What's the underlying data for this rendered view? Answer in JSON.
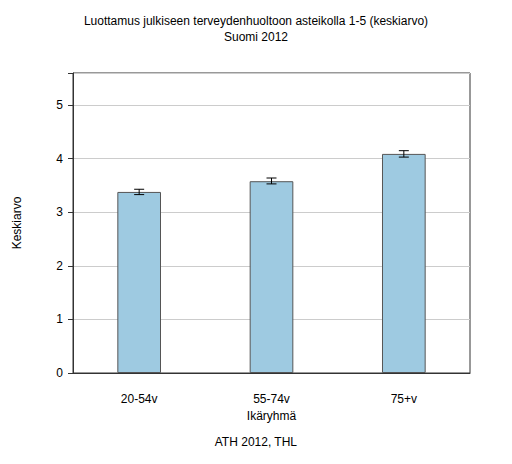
{
  "chart_data": {
    "type": "bar",
    "title": "Luottamus julkiseen terveydenhuoltoon asteikolla 1-5 (keskiarvo)",
    "subtitle": "Suomi 2012",
    "x_label": "Ikäryhmä",
    "y_label": "Keskiarvo",
    "caption": "ATH 2012, THL",
    "categories": [
      "20-54v",
      "55-74v",
      "75+v"
    ],
    "values": [
      3.38,
      3.58,
      4.09
    ],
    "error_bars": [
      [
        3.33,
        3.43
      ],
      [
        3.53,
        3.64
      ],
      [
        4.03,
        4.15
      ]
    ],
    "color": "#9ecae1",
    "ylim": [
      0,
      5.6
    ],
    "yticks": [
      0,
      1,
      2,
      3,
      4,
      5
    ],
    "grid": true
  }
}
